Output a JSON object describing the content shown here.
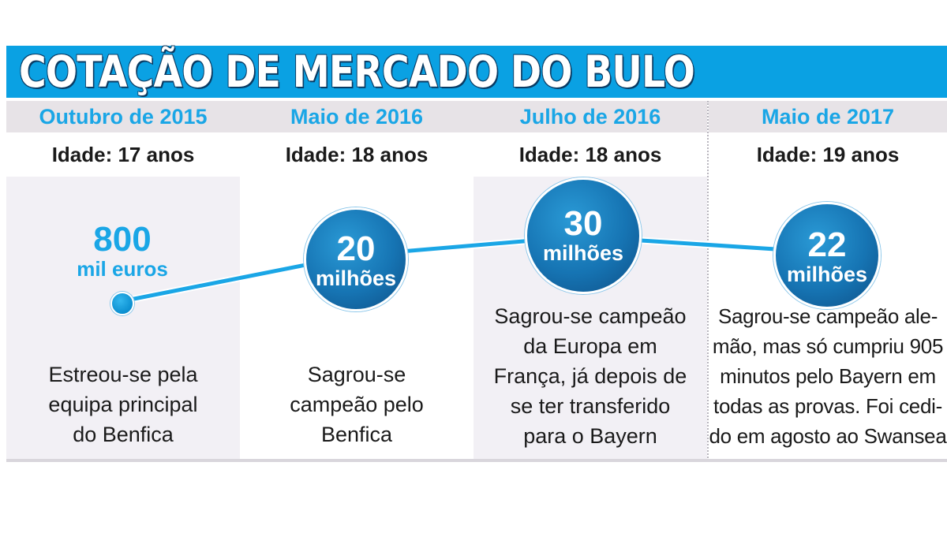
{
  "title": "COTAÇÃO DE MERCADO DO BULO",
  "colors": {
    "accent": "#0aa1e3",
    "bubble": "#1674b3",
    "header_bg": "#e7e3e7"
  },
  "periods": [
    {
      "date": "Outubro de 2015",
      "age": "Idade: 17 anos",
      "value_number": "800",
      "value_unit": "mil euros",
      "caption_lines": [
        "Estreou-se pela",
        "equipa principal",
        "do Benfica"
      ]
    },
    {
      "date": "Maio de 2016",
      "age": "Idade: 18 anos",
      "value_number": "20",
      "value_unit": "milhões",
      "caption_lines": [
        "Sagrou-se",
        "campeão pelo",
        "Benfica"
      ]
    },
    {
      "date": "Julho de 2016",
      "age": "Idade: 18 anos",
      "value_number": "30",
      "value_unit": "milhões",
      "caption_lines": [
        "Sagrou-se campeão",
        "da Europa em",
        "França, já depois de",
        "se ter transferido",
        "para o Bayern"
      ]
    },
    {
      "date": "Maio de 2017",
      "age": "Idade: 19 anos",
      "value_number": "22",
      "value_unit": "milhões",
      "caption_lines": [
        "Sagrou-se campeão ale-",
        "mão, mas só cumpriu 905",
        "minutos pelo Bayern em",
        "todas as provas. Foi cedi-",
        "do em agosto ao Swansea"
      ]
    }
  ]
}
